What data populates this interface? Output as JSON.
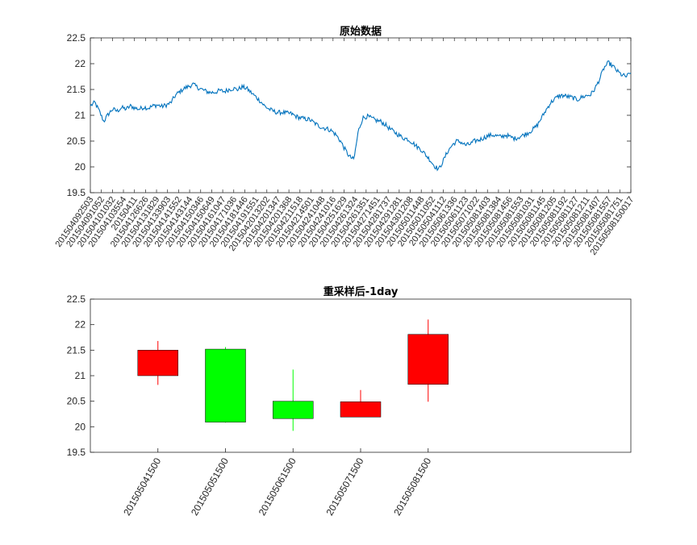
{
  "chart_data": [
    {
      "type": "line",
      "title": "原始数据",
      "ylim": [
        19.5,
        22.5
      ],
      "yticks": [
        19.5,
        20,
        20.5,
        21,
        21.5,
        22,
        22.5
      ],
      "yticklabels": [
        "19.5",
        "20",
        "20.5",
        "21",
        "21.5",
        "22",
        "22.5"
      ],
      "xticklabels": [
        "201504092503",
        "201504091052",
        "201504101032",
        "201504103554",
        "20150411",
        "201504126626",
        "201504131829",
        "201504133903",
        "201504141552",
        "201504143144",
        "201504150346",
        "201504150649",
        "201504161047",
        "201504171036",
        "201504181446",
        "201504191551",
        "2015042013202",
        "201504201347",
        "201504201368",
        "201504211518",
        "201504214501",
        "201504241048",
        "201504241016",
        "201504251629",
        "201504261324",
        "201504261351",
        "201504271451",
        "201504281737",
        "201504291281",
        "201504301208",
        "201505011448",
        "201505011052",
        "201505041112",
        "201505061336",
        "201505061123",
        "201505071022",
        "201505081403",
        "201505081384",
        "201505081456",
        "201505081553",
        "201505081031",
        "201505081145",
        "201505081205",
        "201505081192",
        "201505081127",
        "201505081211",
        "201505081407",
        "201505081557",
        "201505081751",
        "20150508150017"
      ],
      "series": [
        {
          "values": [
            21.18,
            21.25,
            21.08,
            20.88,
            21.02,
            21.12,
            21.08,
            21.15,
            21.12,
            21.18,
            21.14,
            21.12,
            21.16,
            21.14,
            21.18,
            21.2,
            21.17,
            21.2,
            21.24,
            21.38,
            21.46,
            21.52,
            21.56,
            21.6,
            21.54,
            21.5,
            21.46,
            21.44,
            21.45,
            21.48,
            21.46,
            21.5,
            21.52,
            21.5,
            21.55,
            21.52,
            21.44,
            21.36,
            21.28,
            21.18,
            21.12,
            21.08,
            21.05,
            21.06,
            21.04,
            21.03,
            20.98,
            20.95,
            20.93,
            20.92,
            20.86,
            20.8,
            20.76,
            20.74,
            20.7,
            20.62,
            20.5,
            20.34,
            20.2,
            20.14,
            20.7,
            20.95,
            20.98,
            20.94,
            20.9,
            20.88,
            20.82,
            20.74,
            20.68,
            20.62,
            20.56,
            20.54,
            20.48,
            20.4,
            20.34,
            20.24,
            20.14,
            20.02,
            19.95,
            20.12,
            20.3,
            20.42,
            20.5,
            20.48,
            20.42,
            20.44,
            20.5,
            20.52,
            20.56,
            20.6,
            20.62,
            20.6,
            20.58,
            20.62,
            20.58,
            20.55,
            20.58,
            20.62,
            20.66,
            20.72,
            20.8,
            20.95,
            21.1,
            21.24,
            21.32,
            21.38,
            21.38,
            21.36,
            21.34,
            21.3,
            21.35,
            21.38,
            21.4,
            21.52,
            21.7,
            21.92,
            22.02,
            21.95,
            21.85,
            21.78,
            21.75,
            21.82
          ]
        }
      ]
    },
    {
      "type": "candlestick",
      "title": "重采样后-1day",
      "ylim": [
        19.5,
        22.5
      ],
      "yticks": [
        19.5,
        20,
        20.5,
        21,
        21.5,
        22,
        22.5
      ],
      "yticklabels": [
        "19.5",
        "20",
        "20.5",
        "21",
        "21.5",
        "22",
        "22.5"
      ],
      "xlim": [
        0,
        8
      ],
      "categories": [
        "201505041500",
        "201505051500",
        "201505061500",
        "201505071500",
        "201505081500"
      ],
      "ohlc": [
        {
          "open": 21.0,
          "high": 21.68,
          "low": 20.82,
          "close": 21.5
        },
        {
          "open": 21.52,
          "high": 21.56,
          "low": 20.08,
          "close": 20.09
        },
        {
          "open": 20.5,
          "high": 21.12,
          "low": 19.92,
          "close": 20.16
        },
        {
          "open": 20.19,
          "high": 20.72,
          "low": 20.19,
          "close": 20.49
        },
        {
          "open": 20.83,
          "high": 22.1,
          "low": 20.49,
          "close": 21.81
        }
      ],
      "colors": {
        "up": "#ff0000",
        "down": "#00ff00"
      }
    }
  ]
}
